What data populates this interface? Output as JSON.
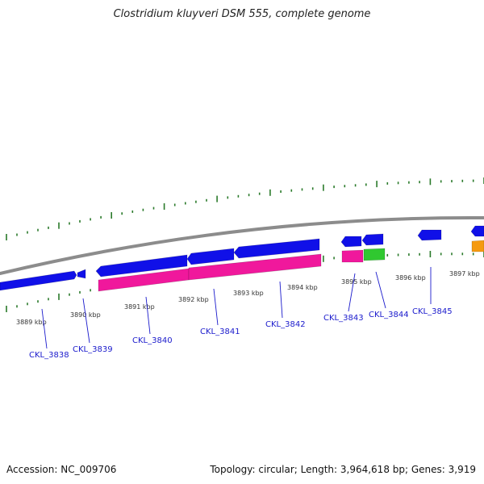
{
  "title": "Clostridium kluyveri DSM 555, complete genome",
  "footer": {
    "accession": "Accession: NC_009706",
    "summary": "Topology: circular; Length: 3,964,618 bp; Genes: 3,919"
  },
  "colors": {
    "backbone": "#8c8c8c",
    "gene_blue": "#1010e8",
    "gene_pink": "#f0189c",
    "gene_green": "#30c830",
    "gene_orange": "#f59a10",
    "tick": "#2a7a2a",
    "label": "#1a1acc"
  },
  "kbp_labels": [
    "3889 kbp",
    "3890 kbp",
    "3891 kbp",
    "3892 kbp",
    "3893 kbp",
    "3894 kbp",
    "3895 kbp",
    "3896 kbp",
    "3897 kbp"
  ],
  "gene_labels": [
    "CKL_3838",
    "CKL_3839",
    "CKL_3840",
    "CKL_3841",
    "CKL_3842",
    "CKL_3843",
    "CKL_3844",
    "CKL_3845"
  ]
}
